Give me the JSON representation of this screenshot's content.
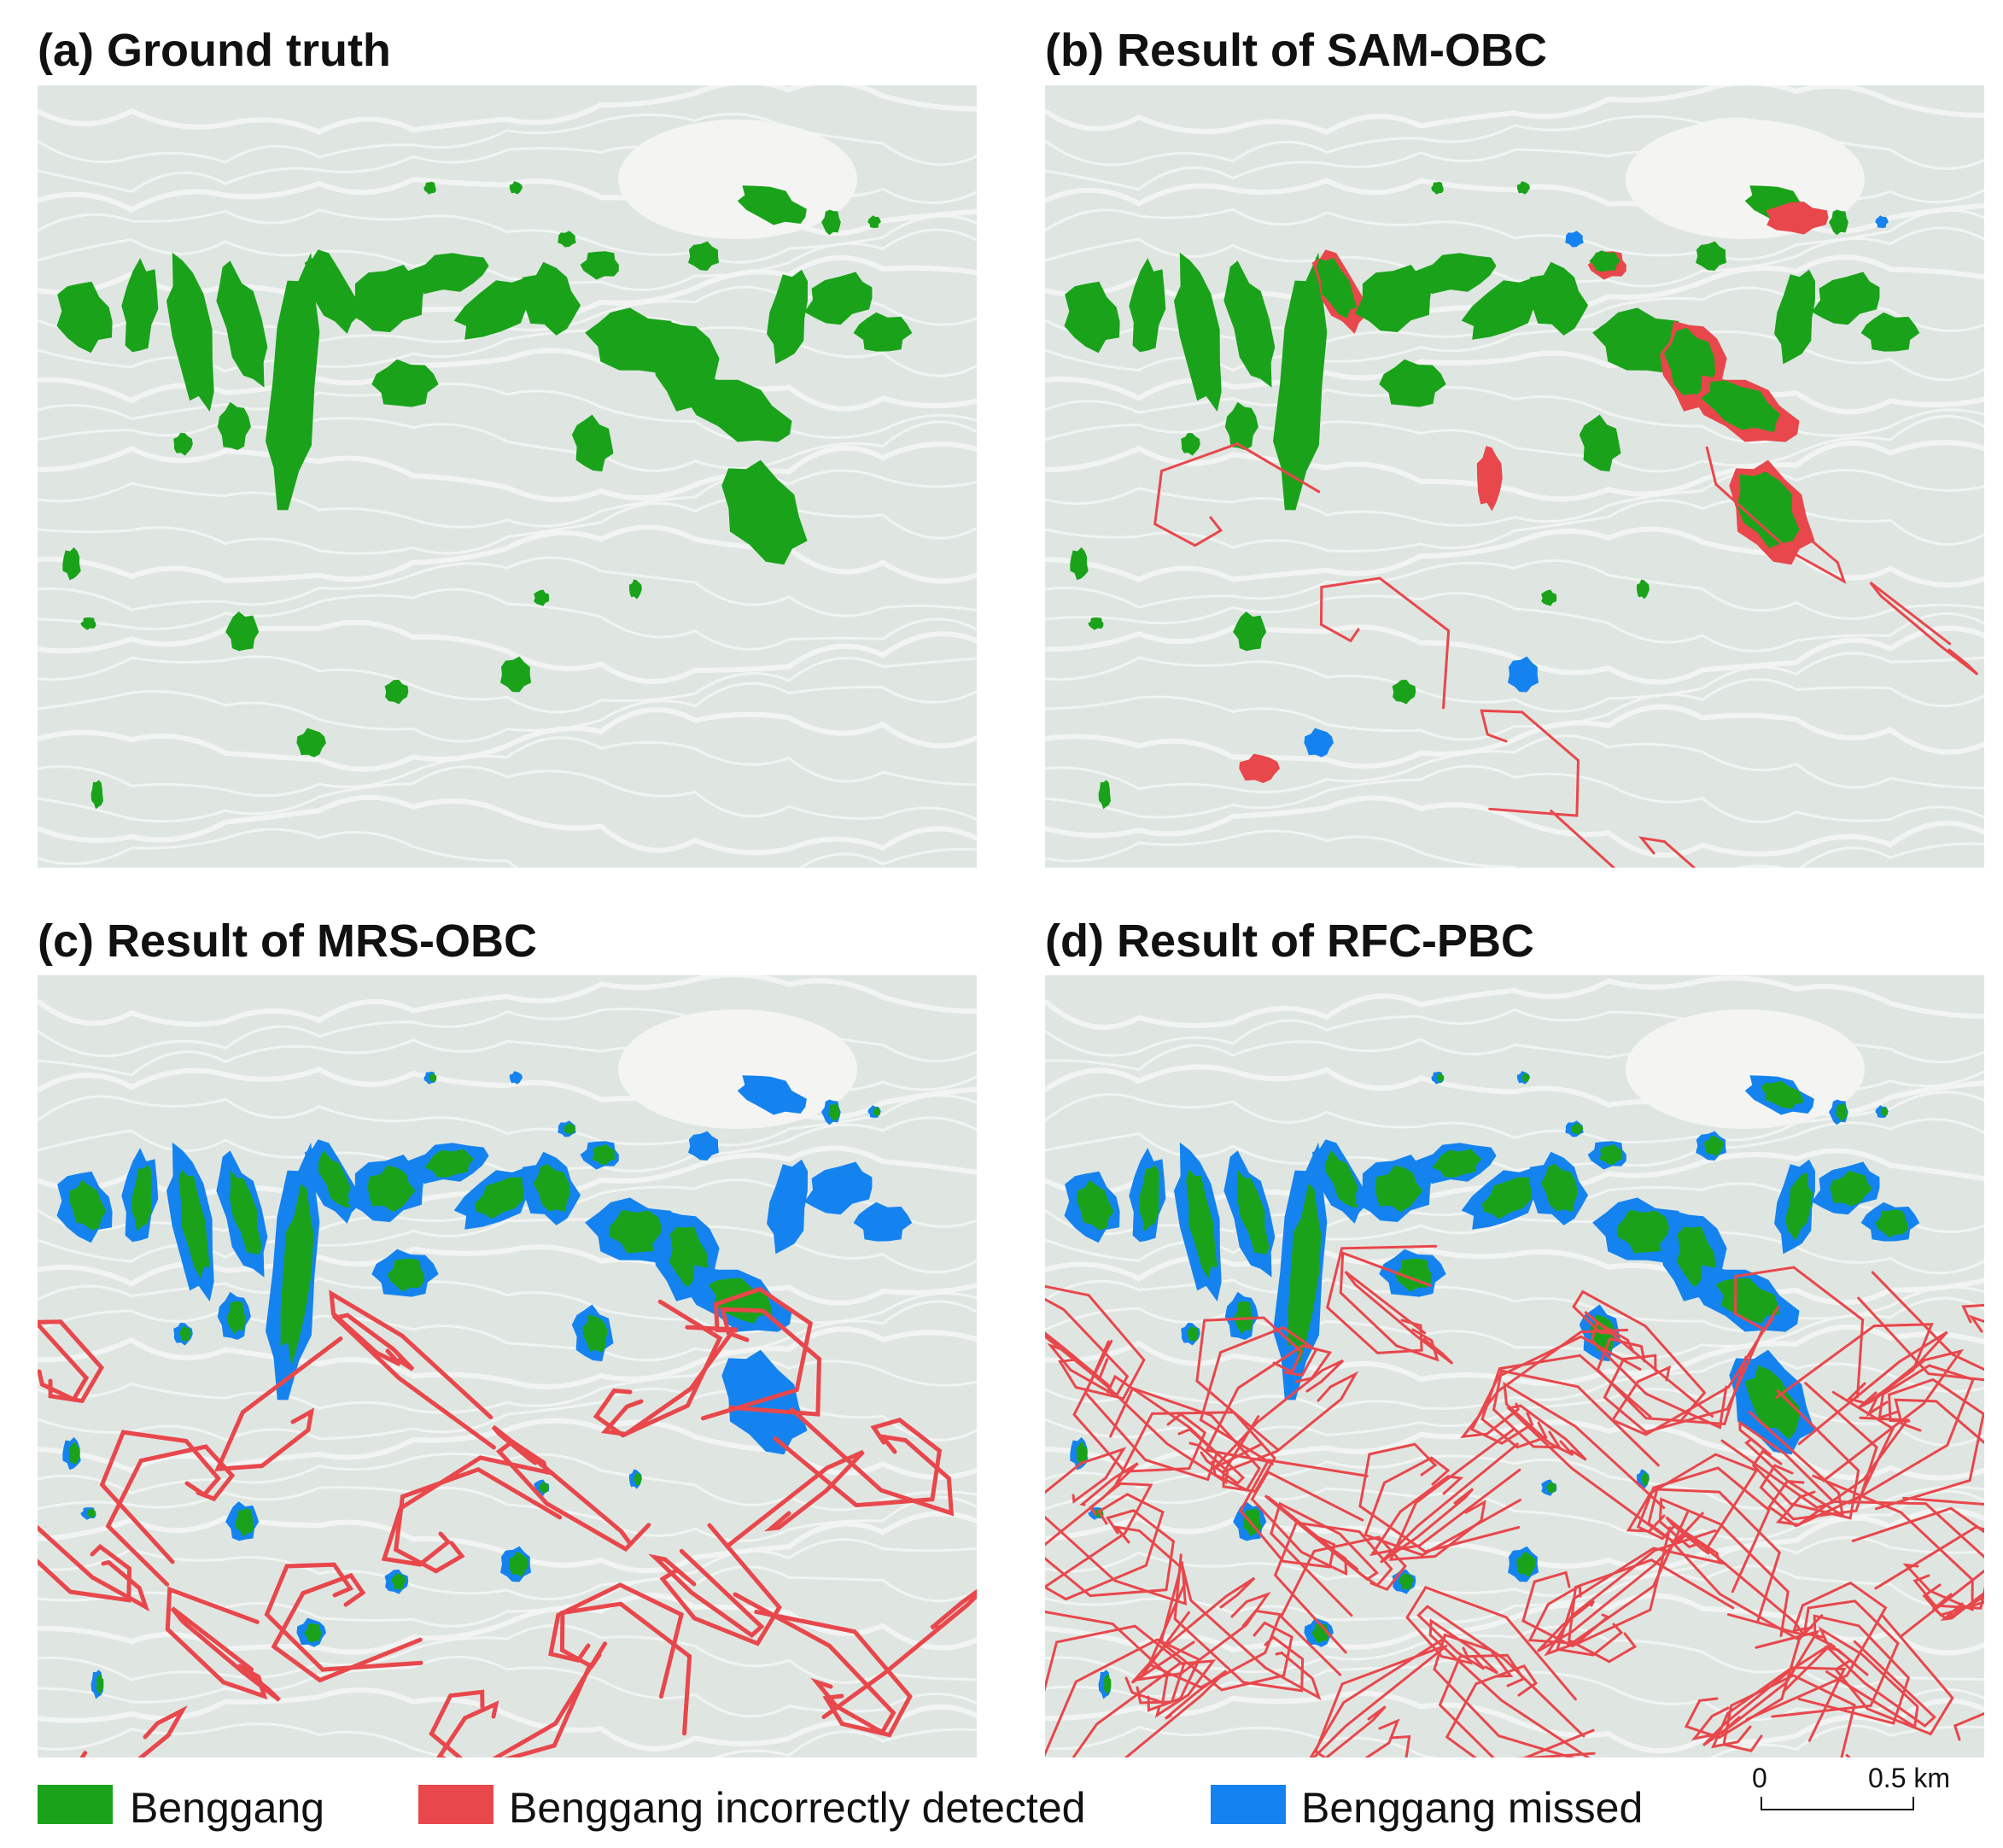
{
  "panels": [
    {
      "id": "a",
      "title": "(a) Ground truth"
    },
    {
      "id": "b",
      "title": "(b) Result of SAM-OBC"
    },
    {
      "id": "c",
      "title": "(c) Result of MRS-OBC"
    },
    {
      "id": "d",
      "title": "(d) Result of RFC-PBC"
    }
  ],
  "legend": [
    {
      "label": "Benggang",
      "color": "#1aa31a"
    },
    {
      "label": "Benggang incorrectly detected",
      "color": "#e8474c"
    },
    {
      "label": "Benggang missed",
      "color": "#1583ef"
    }
  ],
  "scale_bar": {
    "start": "0",
    "end": "0.5 km"
  },
  "colors": {
    "basemap": "#dfe6e2",
    "terrain_line": "#f3f5f4"
  }
}
